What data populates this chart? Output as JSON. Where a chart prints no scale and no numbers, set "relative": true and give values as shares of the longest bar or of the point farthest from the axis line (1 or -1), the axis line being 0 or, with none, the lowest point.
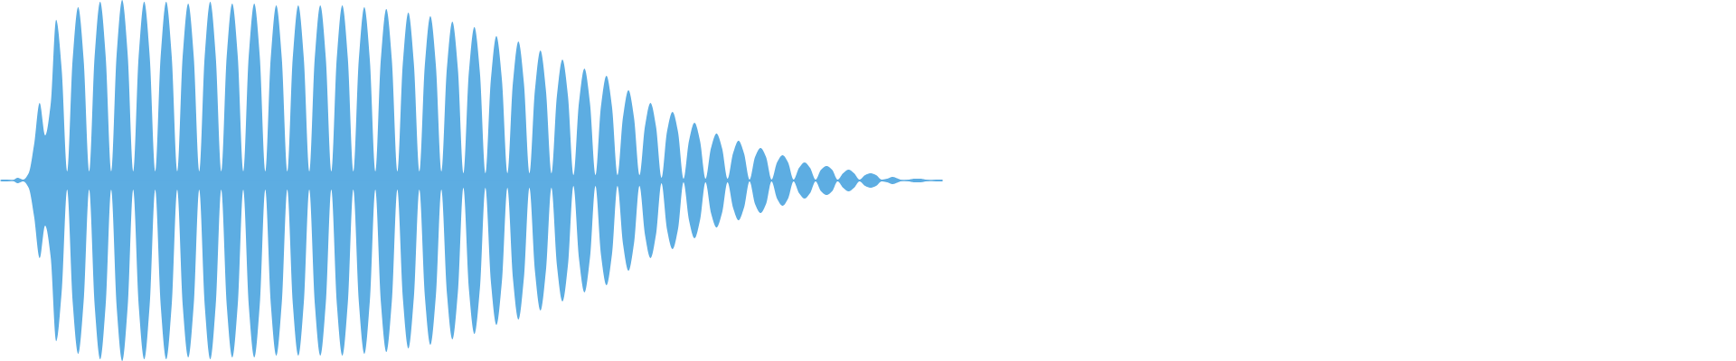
{
  "chart_data": {
    "type": "area",
    "relative": true,
    "categories": [
      null,
      null,
      null,
      null,
      null,
      null,
      null,
      null,
      null,
      null,
      null,
      null,
      null,
      null,
      null,
      null,
      null,
      null,
      null,
      null,
      null,
      null,
      null,
      null,
      null,
      null,
      null,
      null,
      null,
      null,
      null,
      null,
      null,
      null,
      null,
      null,
      null,
      null,
      null,
      null,
      null,
      null,
      null,
      null,
      null,
      null,
      null,
      null,
      null,
      null,
      null,
      null,
      null,
      null,
      null,
      null,
      null,
      null,
      null,
      null,
      null,
      null,
      null,
      null,
      null,
      null,
      null,
      null,
      null,
      null,
      null,
      null,
      null,
      null,
      null,
      null,
      null,
      null,
      null,
      null,
      null,
      null,
      null,
      null,
      null,
      null,
      null,
      null,
      null,
      null,
      null,
      null,
      null,
      null,
      null,
      null,
      null,
      null,
      null,
      null,
      null,
      null,
      null,
      null,
      null,
      null,
      null,
      null,
      null,
      null,
      null,
      null,
      null,
      null,
      null,
      null,
      null,
      null,
      null,
      null,
      null,
      null,
      null,
      null,
      null,
      null,
      null,
      null,
      null,
      null,
      null,
      null,
      null,
      null,
      null,
      null,
      null,
      null,
      null,
      null,
      null,
      null,
      null,
      null,
      null,
      null,
      null,
      null,
      null,
      null,
      null,
      null,
      null,
      null,
      null,
      null,
      null,
      null,
      null,
      null,
      null,
      null,
      null,
      null,
      null,
      null,
      null,
      null,
      null,
      null,
      null,
      null
    ],
    "series": [
      {
        "color": "#5dade2",
        "values": [
          0.005,
          0.005,
          0,
          0.015,
          0.005,
          0.04,
          0.2,
          0.43,
          0.25,
          0.42,
          0.89,
          0.62,
          0.05,
          0.67,
          0.96,
          0.67,
          0.05,
          0.69,
          0.99,
          0.69,
          0.05,
          0.7,
          1,
          0.7,
          0.05,
          0.69,
          0.99,
          0.69,
          0.05,
          0.69,
          0.99,
          0.69,
          0.05,
          0.69,
          0.98,
          0.69,
          0.05,
          0.69,
          0.99,
          0.69,
          0.05,
          0.69,
          0.98,
          0.69,
          0.05,
          0.69,
          0.98,
          0.69,
          0.05,
          0.68,
          0.97,
          0.68,
          0.05,
          0.68,
          0.97,
          0.68,
          0.05,
          0.68,
          0.97,
          0.68,
          0.05,
          0.68,
          0.97,
          0.68,
          0.05,
          0.67,
          0.96,
          0.67,
          0.05,
          0.67,
          0.95,
          0.67,
          0.05,
          0.65,
          0.93,
          0.65,
          0.05,
          0.64,
          0.91,
          0.64,
          0.05,
          0.62,
          0.88,
          0.62,
          0.04,
          0.6,
          0.85,
          0.6,
          0.04,
          0.56,
          0.8,
          0.56,
          0.04,
          0.54,
          0.77,
          0.54,
          0.04,
          0.5,
          0.72,
          0.5,
          0.04,
          0.47,
          0.67,
          0.47,
          0.03,
          0.43,
          0.62,
          0.43,
          0.03,
          0.41,
          0.58,
          0.41,
          0.03,
          0.35,
          0.5,
          0.35,
          0.03,
          0.3,
          0.43,
          0.3,
          0.015,
          0.27,
          0.38,
          0.27,
          0.01,
          0.22,
          0.32,
          0.22,
          0.01,
          0.18,
          0.26,
          0.18,
          0.01,
          0.15,
          0.22,
          0.15,
          0.005,
          0.13,
          0.18,
          0.13,
          0.005,
          0.1,
          0.14,
          0.1,
          0.005,
          0.07,
          0.1,
          0.07,
          0.005,
          0.06,
          0.08,
          0.06,
          0.005,
          0.04,
          0.06,
          0.04,
          0.005,
          0.03,
          0.04,
          0.03,
          0.005,
          0.01,
          0.02,
          0.01,
          0,
          0.005,
          0.01,
          0.01,
          0.005,
          0,
          0.005,
          0.005
        ]
      },
      {
        "color": "#5dade2",
        "values": [
          -0.005,
          -0.005,
          0,
          -0.015,
          -0.005,
          -0.04,
          -0.2,
          -0.43,
          -0.25,
          -0.42,
          -0.89,
          -0.62,
          -0.05,
          -0.67,
          -0.96,
          -0.67,
          -0.05,
          -0.69,
          -0.99,
          -0.69,
          -0.05,
          -0.7,
          -1,
          -0.7,
          -0.05,
          -0.69,
          -0.99,
          -0.69,
          -0.05,
          -0.69,
          -0.99,
          -0.69,
          -0.05,
          -0.69,
          -0.98,
          -0.69,
          -0.05,
          -0.69,
          -0.99,
          -0.69,
          -0.05,
          -0.69,
          -0.98,
          -0.69,
          -0.05,
          -0.69,
          -0.98,
          -0.69,
          -0.05,
          -0.68,
          -0.97,
          -0.68,
          -0.05,
          -0.68,
          -0.97,
          -0.68,
          -0.05,
          -0.68,
          -0.97,
          -0.68,
          -0.05,
          -0.68,
          -0.97,
          -0.68,
          -0.05,
          -0.67,
          -0.96,
          -0.67,
          -0.05,
          -0.67,
          -0.95,
          -0.67,
          -0.05,
          -0.65,
          -0.93,
          -0.65,
          -0.05,
          -0.64,
          -0.91,
          -0.64,
          -0.05,
          -0.62,
          -0.88,
          -0.62,
          -0.04,
          -0.6,
          -0.85,
          -0.6,
          -0.04,
          -0.56,
          -0.8,
          -0.56,
          -0.04,
          -0.54,
          -0.77,
          -0.54,
          -0.04,
          -0.5,
          -0.72,
          -0.5,
          -0.04,
          -0.47,
          -0.67,
          -0.47,
          -0.03,
          -0.43,
          -0.62,
          -0.43,
          -0.03,
          -0.41,
          -0.58,
          -0.41,
          -0.03,
          -0.35,
          -0.5,
          -0.35,
          -0.03,
          -0.3,
          -0.43,
          -0.3,
          -0.015,
          -0.27,
          -0.38,
          -0.27,
          -0.01,
          -0.22,
          -0.32,
          -0.22,
          -0.01,
          -0.18,
          -0.26,
          -0.18,
          -0.01,
          -0.15,
          -0.22,
          -0.15,
          -0.005,
          -0.13,
          -0.18,
          -0.13,
          -0.005,
          -0.1,
          -0.14,
          -0.1,
          -0.005,
          -0.07,
          -0.1,
          -0.07,
          -0.005,
          -0.06,
          -0.08,
          -0.06,
          -0.005,
          -0.04,
          -0.06,
          -0.04,
          -0.005,
          -0.03,
          -0.04,
          -0.03,
          -0.005,
          -0.01,
          -0.02,
          -0.01,
          0,
          -0.005,
          -0.01,
          -0.01,
          -0.005,
          0,
          -0.005,
          -0.005
        ]
      }
    ]
  }
}
